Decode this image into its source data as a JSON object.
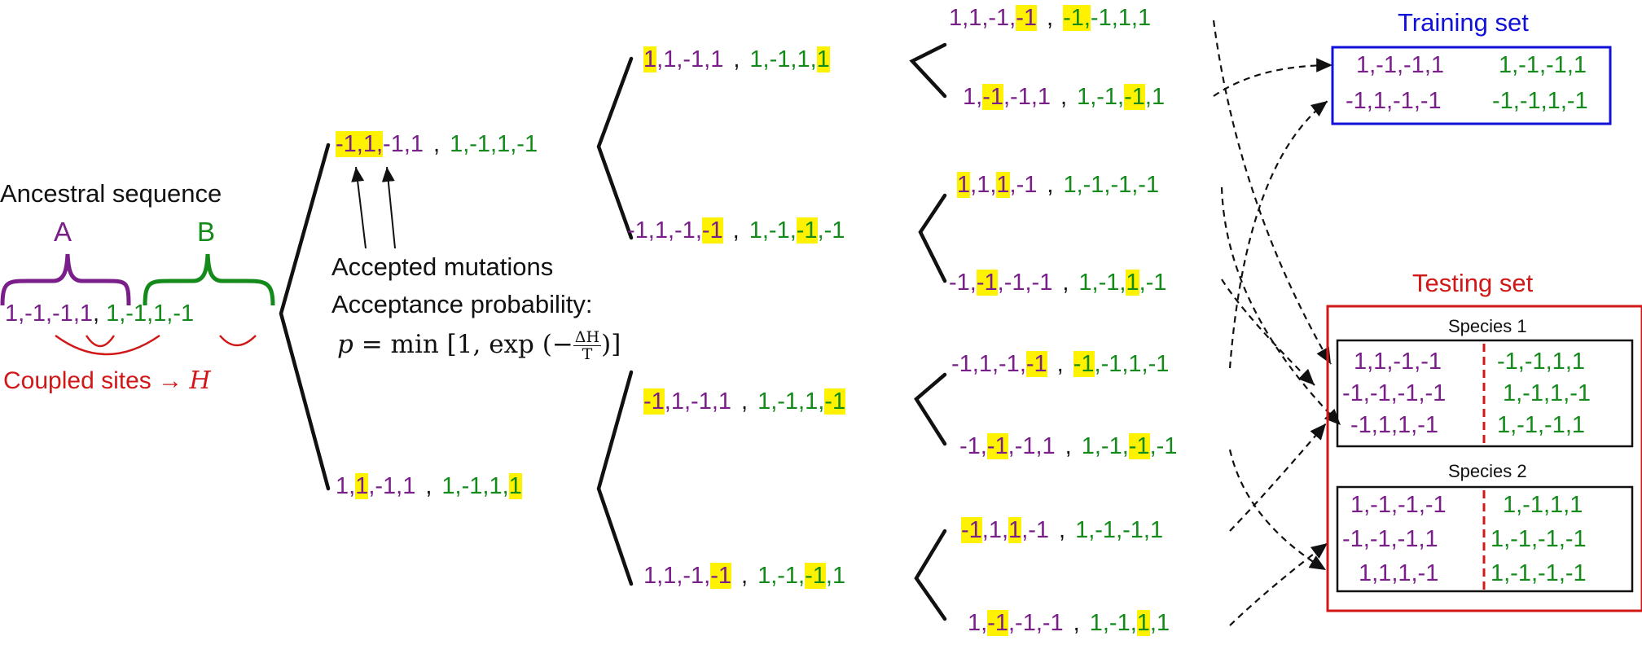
{
  "ancestral": {
    "title": "Ancestral sequence",
    "label_a": "A",
    "label_b": "B",
    "seq_a": "1,-1,-1,1",
    "seq_b": "1,-1,1,-1",
    "comma": ",",
    "coupled_label": "Coupled sites →",
    "coupled_symbol": "H"
  },
  "annotations": {
    "accepted_mutations": "Accepted mutations",
    "acceptance_probability": "Acceptance probability:",
    "formula": {
      "lhs": "p",
      "eq": " = min ",
      "open": "[1, exp (−",
      "num": "ΔH",
      "den": "T",
      "close": ")]"
    }
  },
  "tree": {
    "level1": [
      {
        "a": [
          {
            "t": "-1,",
            "h": true
          },
          {
            "t": "1,",
            "h": true
          },
          {
            "t": "-1,1"
          }
        ],
        "b": [
          {
            "t": "1,-1,1,-1"
          }
        ]
      },
      {
        "a": [
          {
            "t": "1,"
          },
          {
            "t": "1",
            "h": true
          },
          {
            "t": ",-1,1"
          }
        ],
        "b": [
          {
            "t": "1,-1,1,"
          },
          {
            "t": "1",
            "h": true
          }
        ]
      }
    ],
    "level2": [
      {
        "a": [
          {
            "t": "1",
            "h": true
          },
          {
            "t": ",1,-1,1"
          }
        ],
        "b": [
          {
            "t": "1,-1,1,"
          },
          {
            "t": "1",
            "h": true
          }
        ]
      },
      {
        "a": [
          {
            "t": "-1,1,-1,"
          },
          {
            "t": "-1",
            "h": true
          }
        ],
        "b": [
          {
            "t": "1,-1,"
          },
          {
            "t": "-1",
            "h": true
          },
          {
            "t": ",-1"
          }
        ]
      },
      {
        "a": [
          {
            "t": "-1",
            "h": true
          },
          {
            "t": ",1,-1,1"
          }
        ],
        "b": [
          {
            "t": "1,-1,1,"
          },
          {
            "t": "-1",
            "h": true
          }
        ]
      },
      {
        "a": [
          {
            "t": "1,1,-1,"
          },
          {
            "t": "-1",
            "h": true
          }
        ],
        "b": [
          {
            "t": "1,-1,"
          },
          {
            "t": "-1",
            "h": true
          },
          {
            "t": ",1"
          }
        ]
      }
    ],
    "level3": [
      {
        "a": [
          {
            "t": "1,1,-1,"
          },
          {
            "t": "-1",
            "h": true
          }
        ],
        "b": [
          {
            "t": "-1,",
            "h": true
          },
          {
            "t": "-1,1,1"
          }
        ]
      },
      {
        "a": [
          {
            "t": "1,"
          },
          {
            "t": "-1",
            "h": true
          },
          {
            "t": ",-1,1"
          }
        ],
        "b": [
          {
            "t": "1,-1,"
          },
          {
            "t": "-1",
            "h": true
          },
          {
            "t": ",1"
          }
        ]
      },
      {
        "a": [
          {
            "t": "1",
            "h": true
          },
          {
            "t": ",1,"
          },
          {
            "t": "1",
            "h": true
          },
          {
            "t": ",-1"
          }
        ],
        "b": [
          {
            "t": "1,-1,-1,-1"
          }
        ]
      },
      {
        "a": [
          {
            "t": "-1,"
          },
          {
            "t": "-1",
            "h": true
          },
          {
            "t": ",-1,-1"
          }
        ],
        "b": [
          {
            "t": "1,-1,"
          },
          {
            "t": "1",
            "h": true
          },
          {
            "t": ",-1"
          }
        ]
      },
      {
        "a": [
          {
            "t": "-1,1,-1,"
          },
          {
            "t": "-1",
            "h": true
          }
        ],
        "b": [
          {
            "t": "-1",
            "h": true
          },
          {
            "t": ",-1,1,-1"
          }
        ]
      },
      {
        "a": [
          {
            "t": "-1,"
          },
          {
            "t": "-1",
            "h": true
          },
          {
            "t": ",-1,1"
          }
        ],
        "b": [
          {
            "t": "1,-1,"
          },
          {
            "t": "-1",
            "h": true
          },
          {
            "t": ",-1"
          }
        ]
      },
      {
        "a": [
          {
            "t": "-1",
            "h": true
          },
          {
            "t": ",1,"
          },
          {
            "t": "1",
            "h": true
          },
          {
            "t": ",-1"
          }
        ],
        "b": [
          {
            "t": "1,-1,-1,1"
          }
        ]
      },
      {
        "a": [
          {
            "t": "1,"
          },
          {
            "t": "-1",
            "h": true
          },
          {
            "t": ",-1,-1"
          }
        ],
        "b": [
          {
            "t": "1,-1,"
          },
          {
            "t": "1",
            "h": true
          },
          {
            "t": ",1"
          }
        ]
      }
    ]
  },
  "training": {
    "title": "Training set",
    "rows": [
      {
        "a": "1,-1,-1,1",
        "b": "1,-1,-1,1"
      },
      {
        "a": "-1,1,-1,-1",
        "b": "-1,-1,1,-1"
      }
    ]
  },
  "testing": {
    "title": "Testing set",
    "species": [
      {
        "name": "Species 1",
        "rows": [
          {
            "a": "1,1,-1,-1",
            "b": "-1,-1,1,1"
          },
          {
            "a": "-1,-1,-1,-1",
            "b": "1,-1,1,-1"
          },
          {
            "a": "-1,1,1,-1",
            "b": "1,-1,-1,1"
          }
        ]
      },
      {
        "name": "Species 2",
        "rows": [
          {
            "a": "1,-1,-1,-1",
            "b": "1,-1,1,1"
          },
          {
            "a": "-1,-1,-1,1",
            "b": "1,-1,-1,-1"
          },
          {
            "a": "1,1,1,-1",
            "b": "1,-1,-1,-1"
          }
        ]
      }
    ]
  },
  "colors": {
    "part_a": "#7a1f8a",
    "part_b": "#148a1b",
    "highlight": "#fff200",
    "coupling": "#d01818",
    "training_border": "#1010d8",
    "testing_border": "#d01818"
  }
}
